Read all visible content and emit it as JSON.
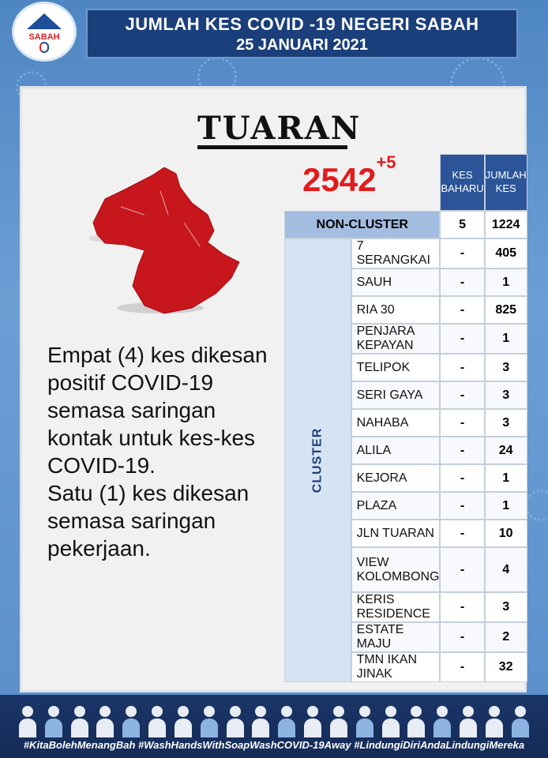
{
  "logo": {
    "text": "SABAH"
  },
  "header": {
    "title_line1": "JUMLAH KES COVID -19 NEGERI SABAH",
    "title_line2": "25 JANUARI 2021"
  },
  "district": "TUARAN",
  "total": {
    "value": "2542",
    "new": "+5"
  },
  "map": {
    "fill": "#c8161d"
  },
  "description": {
    "para1": "Empat (4) kes dikesan positif COVID-19 semasa saringan kontak untuk kes-kes COVID-19.",
    "para2": "Satu (1) kes dikesan semasa saringan pekerjaan."
  },
  "table": {
    "col_new": "KES BAHARU",
    "col_total": "JUMLAH KES",
    "cluster_label": "CLUSTER",
    "non_cluster": {
      "name": "NON-CLUSTER",
      "new": "5",
      "total": "1224"
    },
    "clusters": [
      {
        "name": "7 SERANGKAI",
        "new": "-",
        "total": "405"
      },
      {
        "name": "SAUH",
        "new": "-",
        "total": "1"
      },
      {
        "name": "RIA 30",
        "new": "-",
        "total": "825"
      },
      {
        "name": "PENJARA KEPAYAN",
        "new": "-",
        "total": "1"
      },
      {
        "name": "TELIPOK",
        "new": "-",
        "total": "3"
      },
      {
        "name": "SERI GAYA",
        "new": "-",
        "total": "3"
      },
      {
        "name": "NAHABA",
        "new": "-",
        "total": "3"
      },
      {
        "name": "ALILA",
        "new": "-",
        "total": "24"
      },
      {
        "name": "KEJORA",
        "new": "-",
        "total": "1"
      },
      {
        "name": "PLAZA",
        "new": "-",
        "total": "1"
      },
      {
        "name": "JLN TUARAN",
        "new": "-",
        "total": "10"
      },
      {
        "name": "VIEW KOLOMBONG",
        "new": "-",
        "total": "4"
      },
      {
        "name": "KERIS RESIDENCE",
        "new": "-",
        "total": "3"
      },
      {
        "name": "ESTATE MAJU",
        "new": "-",
        "total": "2"
      },
      {
        "name": "TMN IKAN JINAK",
        "new": "-",
        "total": "32"
      }
    ]
  },
  "footer": {
    "hashtags": "#KitaBolehMenangBah #WashHandsWithSoapWashCOVID-19Away #LindungiDiriAndaLindungiMereka"
  },
  "colors": {
    "header_bg": "#1a3f7a",
    "accent_red": "#e21c1c",
    "table_header": "#2b5598"
  }
}
